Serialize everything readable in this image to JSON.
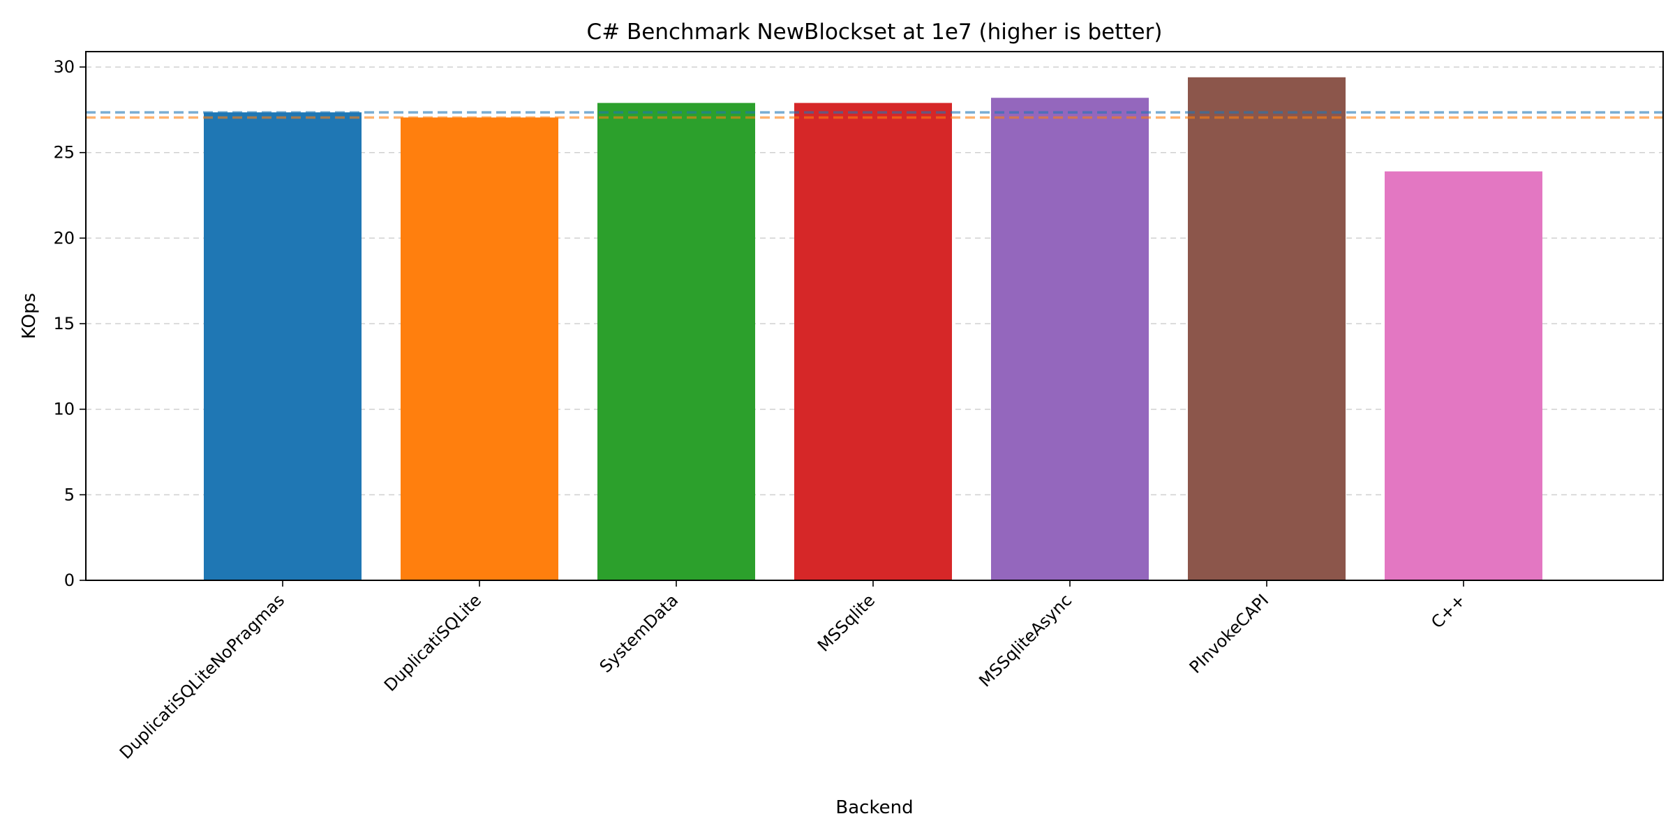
{
  "chart_data": {
    "type": "bar",
    "title": "C# Benchmark NewBlockset at 1e7 (higher is better)",
    "xlabel": "Backend",
    "ylabel": "KOps",
    "categories": [
      "DuplicatiSQLiteNoPragmas",
      "DuplicatiSQLite",
      "SystemData",
      "MSSqlite",
      "MSSqliteAsync",
      "PInvokeCAPI",
      "C++"
    ],
    "values": [
      27.35,
      27.05,
      27.9,
      27.9,
      28.2,
      29.4,
      23.9
    ],
    "colors": [
      "#1f77b4",
      "#ff7f0e",
      "#2ca02c",
      "#d62728",
      "#9467bd",
      "#8c564b",
      "#e377c2"
    ],
    "reference_lines": [
      {
        "value": 27.35,
        "color": "#1f77b4"
      },
      {
        "value": 27.05,
        "color": "#ff7f0e"
      }
    ],
    "ylim": [
      0,
      30.9
    ],
    "yticks": [
      0,
      5,
      10,
      15,
      20,
      25,
      30
    ],
    "grid": "y-dashed"
  }
}
